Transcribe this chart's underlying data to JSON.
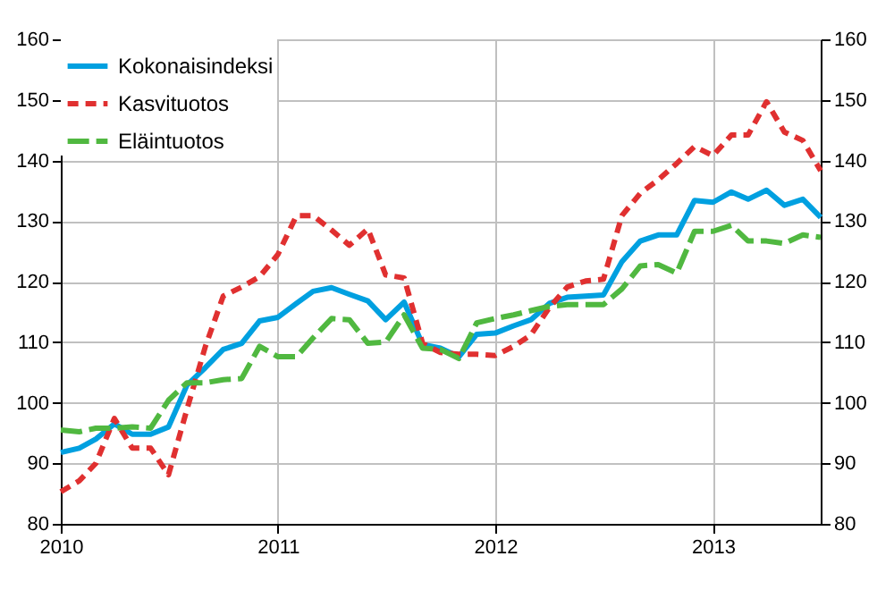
{
  "chart_data": {
    "type": "line",
    "x": [
      "2010-01",
      "2010-02",
      "2010-03",
      "2010-04",
      "2010-05",
      "2010-06",
      "2010-07",
      "2010-08",
      "2010-09",
      "2010-10",
      "2010-11",
      "2010-12",
      "2011-01",
      "2011-02",
      "2011-03",
      "2011-04",
      "2011-05",
      "2011-06",
      "2011-07",
      "2011-08",
      "2011-09",
      "2011-10",
      "2011-11",
      "2011-12",
      "2012-01",
      "2012-02",
      "2012-03",
      "2012-04",
      "2012-05",
      "2012-06",
      "2012-07",
      "2012-08",
      "2012-09",
      "2012-10",
      "2012-11",
      "2012-12",
      "2013-01",
      "2013-02",
      "2013-03",
      "2013-04",
      "2013-05",
      "2013-06",
      "2013-07"
    ],
    "series": [
      {
        "name": "Kokonaisindeksi",
        "color": "#00a0e0",
        "line_style": "solid",
        "values": [
          91.8,
          92.5,
          94.0,
          96.5,
          94.8,
          94.8,
          96.0,
          102.9,
          105.8,
          108.8,
          109.8,
          113.5,
          114.1,
          116.4,
          118.4,
          119.0,
          117.9,
          116.8,
          113.7,
          116.6,
          109.6,
          109.0,
          107.6,
          111.3,
          111.5,
          112.7,
          113.7,
          116.4,
          117.4,
          117.6,
          117.8,
          123.3,
          126.7,
          127.7,
          127.7,
          133.4,
          133.1,
          134.8,
          133.6,
          135.1,
          132.6,
          133.6,
          130.6
        ]
      },
      {
        "name": "Kasvituotos",
        "color": "#e03030",
        "line_style": "dashed",
        "values": [
          85.3,
          87.1,
          90.0,
          97.4,
          92.5,
          92.5,
          88.1,
          98.9,
          109.3,
          117.6,
          119.1,
          120.8,
          124.5,
          130.9,
          130.9,
          128.5,
          126.0,
          128.7,
          121.1,
          120.6,
          109.8,
          108.3,
          108.0,
          108.0,
          107.8,
          109.3,
          111.2,
          115.7,
          119.1,
          120.1,
          120.4,
          130.9,
          134.6,
          136.8,
          139.5,
          142.3,
          140.8,
          144.2,
          144.2,
          149.7,
          144.7,
          143.3,
          138.3
        ]
      },
      {
        "name": "Eläintuotos",
        "color": "#50b840",
        "line_style": "longdash",
        "values": [
          95.5,
          95.2,
          95.8,
          95.8,
          96.0,
          95.8,
          100.4,
          103.3,
          103.3,
          103.8,
          104.0,
          109.3,
          107.6,
          107.6,
          110.7,
          113.9,
          113.7,
          109.8,
          110.0,
          114.5,
          109.0,
          108.8,
          107.3,
          113.2,
          113.9,
          114.5,
          115.2,
          115.9,
          116.2,
          116.2,
          116.2,
          118.8,
          122.6,
          122.8,
          121.4,
          128.3,
          128.3,
          129.3,
          126.7,
          126.7,
          126.3,
          127.7,
          127.3
        ]
      }
    ],
    "xlim": [
      "2010-01",
      "2013-07"
    ],
    "xticks": [
      "2010",
      "2011",
      "2012",
      "2013"
    ],
    "ylim": [
      80,
      160
    ],
    "yticks": [
      80,
      90,
      100,
      110,
      120,
      130,
      140,
      150,
      160
    ],
    "y2lim": [
      80,
      160
    ],
    "y2ticks": [
      80,
      90,
      100,
      110,
      120,
      130,
      140,
      150,
      160
    ],
    "grid": true,
    "legend": "top left"
  }
}
